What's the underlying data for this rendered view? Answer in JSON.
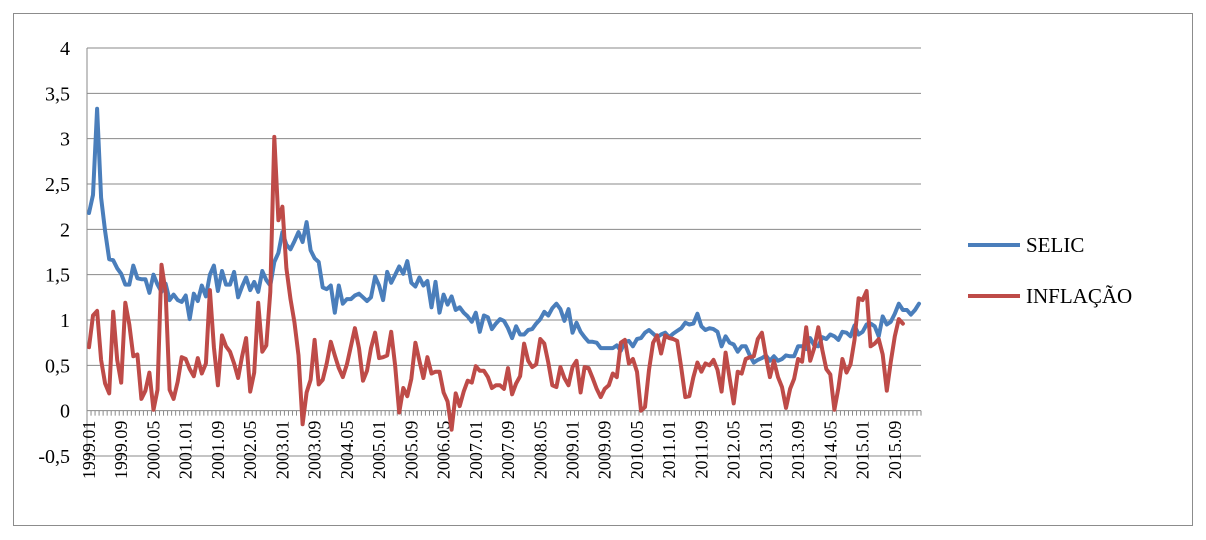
{
  "chart_data": {
    "type": "line",
    "title": "",
    "xlabel": "",
    "ylabel": "",
    "ylim": [
      -0.5,
      4
    ],
    "y_ticks": [
      "4",
      "3,5",
      "3",
      "2,5",
      "2",
      "1,5",
      "1",
      "0,5",
      "0",
      "-0,5"
    ],
    "x_tick_labels": [
      "1999.01",
      "1999.09",
      "2000.05",
      "2001.01",
      "2001.09",
      "2002.05",
      "2003.01",
      "2003.09",
      "2004.05",
      "2005.01",
      "2005.09",
      "2006.05",
      "2007.01",
      "2007.09",
      "2008.05",
      "2009.01",
      "2009.09",
      "2010.05",
      "2011.01",
      "2011.09",
      "2012.05",
      "2013.01",
      "2013.09",
      "2014.05",
      "2015.01",
      "2015.09"
    ],
    "x_start": "1999.01",
    "x_end": "2015.12",
    "grid": true,
    "legend_position": "right",
    "series": [
      {
        "name": "SELIC",
        "color": "#4a7ebb",
        "values": [
          2.18,
          2.38,
          3.33,
          2.35,
          1.98,
          1.67,
          1.66,
          1.57,
          1.51,
          1.39,
          1.39,
          1.6,
          1.46,
          1.45,
          1.45,
          1.3,
          1.5,
          1.39,
          1.31,
          1.4,
          1.22,
          1.28,
          1.22,
          1.2,
          1.27,
          1.01,
          1.29,
          1.21,
          1.38,
          1.26,
          1.5,
          1.6,
          1.32,
          1.54,
          1.39,
          1.39,
          1.53,
          1.25,
          1.37,
          1.47,
          1.33,
          1.42,
          1.31,
          1.54,
          1.44,
          1.38,
          1.64,
          1.74,
          1.97,
          1.83,
          1.78,
          1.87,
          1.97,
          1.86,
          2.08,
          1.77,
          1.68,
          1.64,
          1.36,
          1.34,
          1.38,
          1.08,
          1.38,
          1.18,
          1.23,
          1.23,
          1.27,
          1.29,
          1.25,
          1.21,
          1.25,
          1.48,
          1.38,
          1.22,
          1.53,
          1.41,
          1.5,
          1.59,
          1.51,
          1.65,
          1.41,
          1.37,
          1.47,
          1.38,
          1.43,
          1.14,
          1.42,
          1.08,
          1.28,
          1.17,
          1.26,
          1.11,
          1.14,
          1.08,
          1.04,
          0.98,
          1.08,
          0.87,
          1.05,
          1.03,
          0.9,
          0.96,
          1.01,
          0.99,
          0.91,
          0.8,
          0.93,
          0.84,
          0.84,
          0.89,
          0.9,
          0.96,
          1.01,
          1.09,
          1.05,
          1.13,
          1.18,
          1.12,
          0.99,
          1.12,
          0.86,
          0.97,
          0.87,
          0.81,
          0.76,
          0.76,
          0.75,
          0.69,
          0.69,
          0.69,
          0.69,
          0.72,
          0.66,
          0.76,
          0.77,
          0.71,
          0.79,
          0.8,
          0.86,
          0.89,
          0.85,
          0.81,
          0.84,
          0.86,
          0.81,
          0.85,
          0.88,
          0.91,
          0.97,
          0.95,
          0.96,
          1.07,
          0.93,
          0.89,
          0.91,
          0.9,
          0.87,
          0.71,
          0.82,
          0.75,
          0.73,
          0.65,
          0.71,
          0.71,
          0.61,
          0.53,
          0.56,
          0.58,
          0.61,
          0.55,
          0.6,
          0.55,
          0.57,
          0.61,
          0.6,
          0.6,
          0.71,
          0.71,
          0.68,
          0.8,
          0.72,
          0.71,
          0.81,
          0.79,
          0.84,
          0.82,
          0.78,
          0.87,
          0.86,
          0.82,
          0.94,
          0.84,
          0.87,
          0.95,
          0.96,
          0.93,
          0.82,
          1.04,
          0.95,
          0.98,
          1.07,
          1.18,
          1.11,
          1.11,
          1.06,
          1.11,
          1.18
        ]
      },
      {
        "name": "INFLAÇÃO",
        "color": "#be4b48",
        "values": [
          0.7,
          1.05,
          1.1,
          0.56,
          0.3,
          0.19,
          1.09,
          0.56,
          0.31,
          1.19,
          0.95,
          0.6,
          0.62,
          0.13,
          0.22,
          0.42,
          0.01,
          0.23,
          1.61,
          1.31,
          0.23,
          0.13,
          0.32,
          0.59,
          0.57,
          0.46,
          0.38,
          0.58,
          0.41,
          0.52,
          1.33,
          0.7,
          0.28,
          0.83,
          0.71,
          0.65,
          0.52,
          0.36,
          0.6,
          0.8,
          0.21,
          0.42,
          1.19,
          0.65,
          0.72,
          1.31,
          3.02,
          2.1,
          2.25,
          1.57,
          1.23,
          0.97,
          0.61,
          -0.15,
          0.2,
          0.34,
          0.78,
          0.29,
          0.34,
          0.52,
          0.76,
          0.61,
          0.47,
          0.37,
          0.51,
          0.71,
          0.91,
          0.69,
          0.33,
          0.44,
          0.69,
          0.86,
          0.58,
          0.59,
          0.61,
          0.87,
          0.49,
          -0.02,
          0.25,
          0.16,
          0.35,
          0.75,
          0.55,
          0.36,
          0.59,
          0.41,
          0.43,
          0.43,
          0.2,
          0.1,
          -0.21,
          0.19,
          0.05,
          0.21,
          0.33,
          0.31,
          0.49,
          0.44,
          0.44,
          0.37,
          0.25,
          0.28,
          0.28,
          0.24,
          0.47,
          0.18,
          0.3,
          0.38,
          0.74,
          0.55,
          0.48,
          0.51,
          0.79,
          0.74,
          0.53,
          0.28,
          0.26,
          0.48,
          0.36,
          0.28,
          0.48,
          0.55,
          0.2,
          0.48,
          0.47,
          0.36,
          0.24,
          0.15,
          0.24,
          0.28,
          0.41,
          0.37,
          0.75,
          0.78,
          0.52,
          0.57,
          0.43,
          0.0,
          0.04,
          0.45,
          0.75,
          0.83,
          0.63,
          0.83,
          0.8,
          0.79,
          0.77,
          0.47,
          0.15,
          0.16,
          0.37,
          0.53,
          0.43,
          0.52,
          0.5,
          0.56,
          0.45,
          0.21,
          0.64,
          0.36,
          0.08,
          0.43,
          0.41,
          0.57,
          0.59,
          0.6,
          0.79,
          0.86,
          0.6,
          0.37,
          0.55,
          0.37,
          0.26,
          0.03,
          0.24,
          0.35,
          0.57,
          0.54,
          0.92,
          0.55,
          0.69,
          0.92,
          0.67,
          0.46,
          0.4,
          0.01,
          0.25,
          0.57,
          0.42,
          0.51,
          0.78,
          1.24,
          1.22,
          1.32,
          0.71,
          0.74,
          0.79,
          0.62,
          0.22,
          0.54,
          0.82,
          1.01,
          0.96
        ]
      }
    ]
  }
}
